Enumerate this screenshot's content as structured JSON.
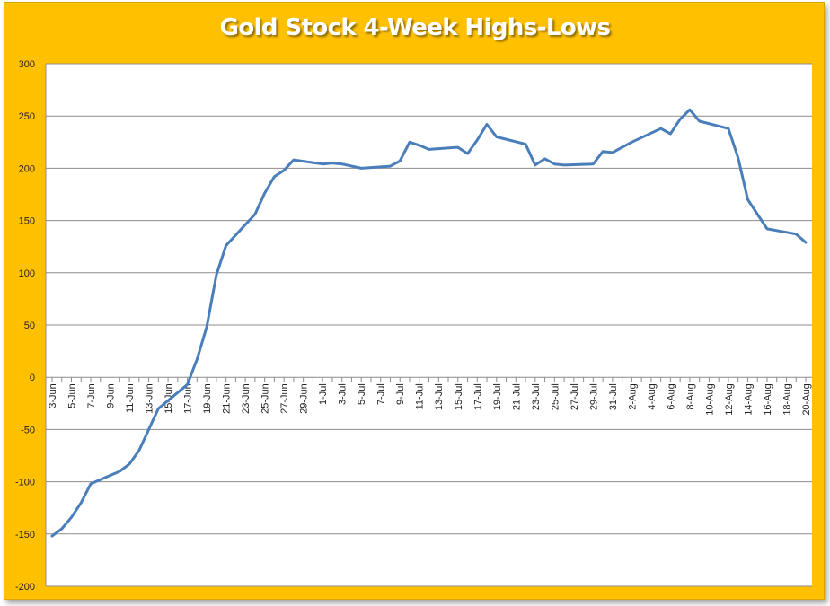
{
  "chart_data": {
    "type": "line",
    "title": "Gold Stock 4-Week Highs-Lows",
    "xlabel": "",
    "ylabel": "",
    "ylim": [
      -200,
      300
    ],
    "yticks": [
      300,
      250,
      200,
      150,
      100,
      50,
      0,
      -50,
      -100,
      -150,
      -200
    ],
    "grid": true,
    "legend": "none",
    "x_tick_labels": [
      "3-Jun",
      "5-Jun",
      "7-Jun",
      "9-Jun",
      "11-Jun",
      "13-Jun",
      "15-Jun",
      "17-Jun",
      "19-Jun",
      "21-Jun",
      "23-Jun",
      "25-Jun",
      "27-Jun",
      "29-Jun",
      "1-Jul",
      "3-Jul",
      "5-Jul",
      "7-Jul",
      "9-Jul",
      "11-Jul",
      "13-Jul",
      "15-Jul",
      "17-Jul",
      "19-Jul",
      "21-Jul",
      "23-Jul",
      "25-Jul",
      "27-Jul",
      "29-Jul",
      "31-Jul",
      "2-Aug",
      "4-Aug",
      "6-Aug",
      "8-Aug",
      "10-Aug",
      "12-Aug",
      "14-Aug",
      "16-Aug",
      "18-Aug",
      "20-Aug"
    ],
    "series": [
      {
        "color": "#4a7ebb",
        "points": [
          [
            "3-Jun",
            -152
          ],
          [
            "4-Jun",
            -145
          ],
          [
            "5-Jun",
            -134
          ],
          [
            "6-Jun",
            -120
          ],
          [
            "7-Jun",
            -102
          ],
          [
            "10-Jun",
            -90
          ],
          [
            "11-Jun",
            -83
          ],
          [
            "12-Jun",
            -70
          ],
          [
            "13-Jun",
            -50
          ],
          [
            "14-Jun",
            -30
          ],
          [
            "17-Jun",
            -7
          ],
          [
            "18-Jun",
            17
          ],
          [
            "19-Jun",
            48
          ],
          [
            "20-Jun",
            98
          ],
          [
            "21-Jun",
            126
          ],
          [
            "24-Jun",
            156
          ],
          [
            "25-Jun",
            176
          ],
          [
            "26-Jun",
            192
          ],
          [
            "27-Jun",
            198
          ],
          [
            "28-Jun",
            208
          ],
          [
            "1-Jul",
            204
          ],
          [
            "2-Jul",
            205
          ],
          [
            "3-Jul",
            204
          ],
          [
            "5-Jul",
            200
          ],
          [
            "8-Jul",
            202
          ],
          [
            "9-Jul",
            207
          ],
          [
            "10-Jul",
            225
          ],
          [
            "11-Jul",
            222
          ],
          [
            "12-Jul",
            218
          ],
          [
            "15-Jul",
            220
          ],
          [
            "16-Jul",
            214
          ],
          [
            "17-Jul",
            227
          ],
          [
            "18-Jul",
            242
          ],
          [
            "19-Jul",
            230
          ],
          [
            "22-Jul",
            223
          ],
          [
            "23-Jul",
            203
          ],
          [
            "24-Jul",
            209
          ],
          [
            "25-Jul",
            204
          ],
          [
            "26-Jul",
            203
          ],
          [
            "29-Jul",
            204
          ],
          [
            "30-Jul",
            216
          ],
          [
            "31-Jul",
            215
          ],
          [
            "1-Aug",
            220
          ],
          [
            "2-Aug",
            225
          ],
          [
            "5-Aug",
            238
          ],
          [
            "6-Aug",
            233
          ],
          [
            "7-Aug",
            247
          ],
          [
            "8-Aug",
            256
          ],
          [
            "9-Aug",
            245
          ],
          [
            "12-Aug",
            238
          ],
          [
            "13-Aug",
            210
          ],
          [
            "14-Aug",
            170
          ],
          [
            "15-Aug",
            156
          ],
          [
            "16-Aug",
            142
          ],
          [
            "19-Aug",
            137
          ],
          [
            "20-Aug",
            129
          ]
        ]
      }
    ]
  }
}
